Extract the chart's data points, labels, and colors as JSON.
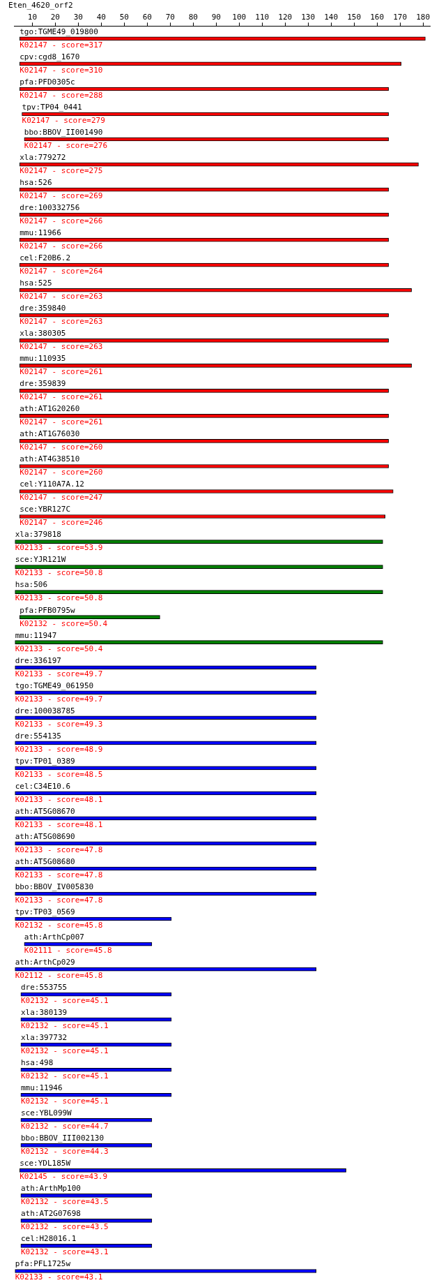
{
  "chart_data": {
    "type": "bar",
    "orientation": "horizontal",
    "title": "Eten_4620_orf2",
    "categories": [
      "tgo:TGME49_019800",
      "cpv:cgd8_1670",
      "pfa:PFD0305c",
      "tpv:TP04_0441",
      "bbo:BBOV_II001490",
      "xla:779272",
      "hsa:526",
      "dre:100332756",
      "mmu:11966",
      "cel:F20B6.2",
      "hsa:525",
      "dre:359840",
      "xla:380305",
      "mmu:110935",
      "dre:359839",
      "ath:AT1G20260",
      "ath:AT1G76030",
      "ath:AT4G38510",
      "cel:Y110A7A.12",
      "sce:YBR127C",
      "xla:379818",
      "sce:YJR121W",
      "hsa:506",
      "pfa:PFB0795w",
      "mmu:11947",
      "dre:336197",
      "tgo:TGME49_061950",
      "dre:100038785",
      "dre:554135",
      "tpv:TP01_0389",
      "cel:C34E10.6",
      "ath:AT5G08670",
      "ath:AT5G08690",
      "ath:AT5G08680",
      "bbo:BBOV_IV005830",
      "tpv:TP03_0569",
      "ath:ArthCp007",
      "ath:ArthCp029",
      "dre:553755",
      "xla:380139",
      "xla:397732",
      "hsa:498",
      "mmu:11946",
      "sce:YBL099W",
      "bbo:BBOV_III002130",
      "sce:YDL185W",
      "ath:ArthMp100",
      "ath:AT2G07698",
      "cel:H28016.1",
      "pfa:PFL1725w"
    ],
    "base": [
      4.5,
      4.5,
      4.5,
      5.5,
      6.5,
      4.5,
      4.5,
      4.5,
      4.5,
      4.5,
      4.5,
      4.5,
      4.5,
      4.5,
      4.5,
      4.5,
      4.5,
      4.5,
      4.5,
      4.5,
      2.5,
      2.5,
      2.5,
      4.5,
      2.5,
      2.5,
      2.5,
      2.5,
      2.5,
      2.5,
      2.5,
      2.5,
      2.5,
      2.5,
      2.5,
      2.5,
      6.5,
      2.5,
      5,
      5,
      5,
      5,
      5,
      5,
      5,
      4.5,
      5,
      5,
      5,
      2.5
    ],
    "values": [
      176.5,
      166,
      160.5,
      159.5,
      158.5,
      173.5,
      160.5,
      160.5,
      160.5,
      160.5,
      170.5,
      160.5,
      160.5,
      170.5,
      160.5,
      160.5,
      160.5,
      160.5,
      162.5,
      159,
      160,
      160,
      160,
      61,
      160,
      131,
      131,
      131,
      131,
      131,
      131,
      131,
      131,
      131,
      131,
      68,
      55.5,
      131,
      65.5,
      65.5,
      65.5,
      65.5,
      65.5,
      57,
      57,
      142,
      57,
      57,
      57,
      131
    ],
    "colors": [
      "#ff0000",
      "#ff0000",
      "#ff0000",
      "#ff0000",
      "#ff0000",
      "#ff0000",
      "#ff0000",
      "#ff0000",
      "#ff0000",
      "#ff0000",
      "#ff0000",
      "#ff0000",
      "#ff0000",
      "#ff0000",
      "#ff0000",
      "#ff0000",
      "#ff0000",
      "#ff0000",
      "#ff0000",
      "#ff0000",
      "#008000",
      "#008000",
      "#008000",
      "#008000",
      "#008000",
      "#0000ff",
      "#0000ff",
      "#0000ff",
      "#0000ff",
      "#0000ff",
      "#0000ff",
      "#0000ff",
      "#0000ff",
      "#0000ff",
      "#0000ff",
      "#0000ff",
      "#0000ff",
      "#0000ff",
      "#0000ff",
      "#0000ff",
      "#0000ff",
      "#0000ff",
      "#0000ff",
      "#0000ff",
      "#0000ff",
      "#0000ff",
      "#0000ff",
      "#0000ff",
      "#0000ff",
      "#0000ff"
    ],
    "value_labels": [
      "K02147 - score=317",
      "K02147 - score=310",
      "K02147 - score=288",
      "K02147 - score=279",
      "K02147 - score=276",
      "K02147 - score=275",
      "K02147 - score=269",
      "K02147 - score=266",
      "K02147 - score=266",
      "K02147 - score=264",
      "K02147 - score=263",
      "K02147 - score=263",
      "K02147 - score=263",
      "K02147 - score=261",
      "K02147 - score=261",
      "K02147 - score=261",
      "K02147 - score=260",
      "K02147 - score=260",
      "K02147 - score=247",
      "K02147 - score=246",
      "K02133 - score=53.9",
      "K02133 - score=50.8",
      "K02133 - score=50.8",
      "K02132 - score=50.4",
      "K02133 - score=50.4",
      "K02133 - score=49.7",
      "K02133 - score=49.7",
      "K02133 - score=49.3",
      "K02133 - score=48.9",
      "K02133 - score=48.5",
      "K02133 - score=48.1",
      "K02133 - score=48.1",
      "K02133 - score=47.8",
      "K02133 - score=47.8",
      "K02133 - score=47.8",
      "K02132 - score=45.8",
      "K02111 - score=45.8",
      "K02112 - score=45.8",
      "K02132 - score=45.1",
      "K02132 - score=45.1",
      "K02132 - score=45.1",
      "K02132 - score=45.1",
      "K02132 - score=45.1",
      "K02132 - score=44.7",
      "K02132 - score=44.3",
      "K02145 - score=43.9",
      "K02132 - score=43.5",
      "K02132 - score=43.5",
      "K02132 - score=43.1",
      "K02133 - score=43.1"
    ],
    "xlim": [
      2,
      183
    ],
    "xticks": [
      10,
      20,
      30,
      40,
      50,
      60,
      70,
      80,
      90,
      100,
      110,
      120,
      130,
      140,
      150,
      160,
      170,
      180
    ],
    "grid": false,
    "legend": false
  }
}
